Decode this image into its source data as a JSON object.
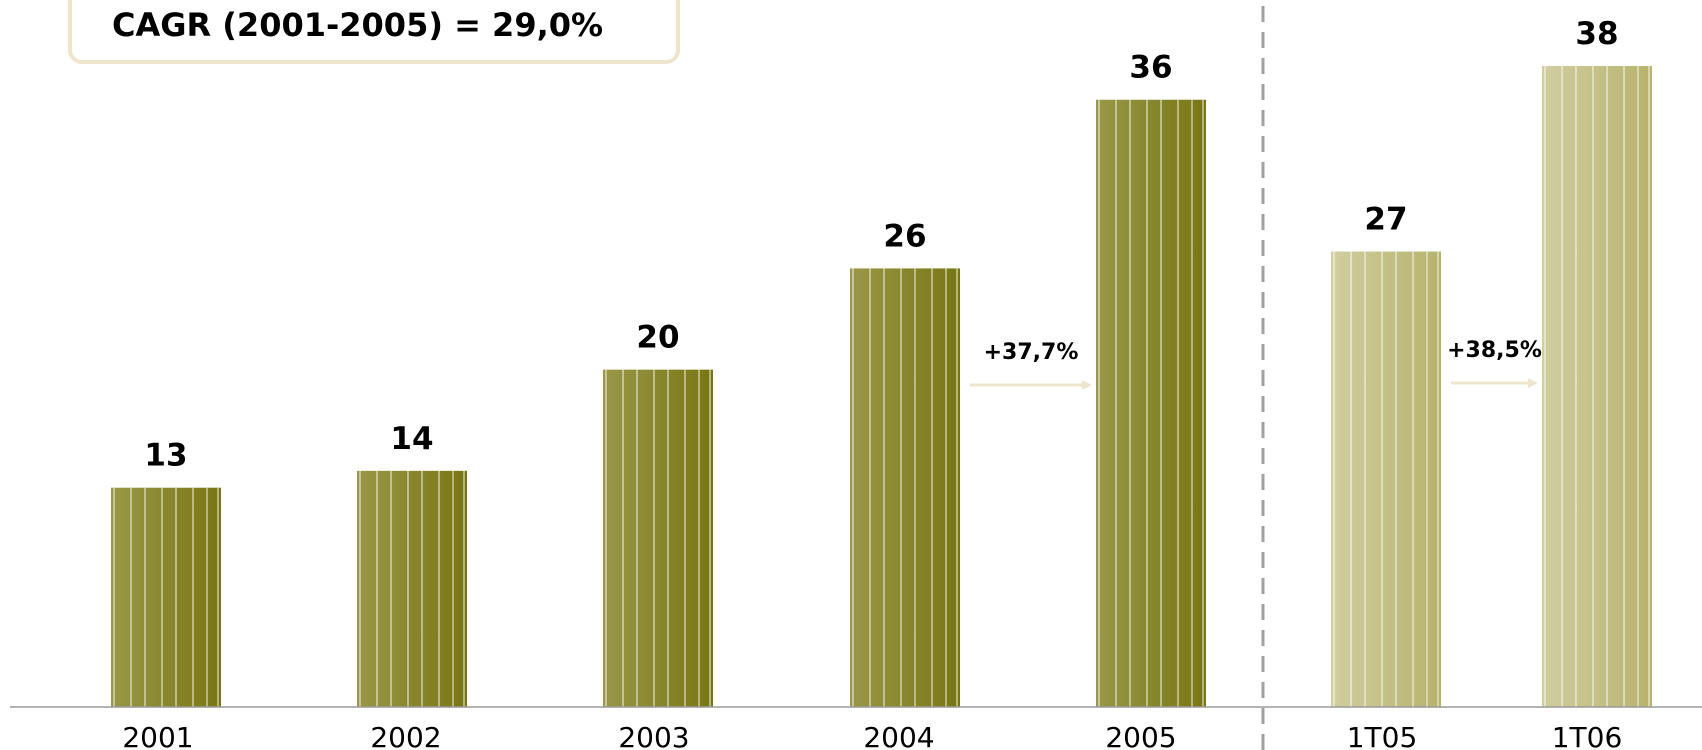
{
  "cagr_label": "CAGR (2001-2005) = 29,0%",
  "colors": {
    "annual_dark": "#787613",
    "annual_light": "#9a9848",
    "quarter_dark": "#b7b36c",
    "quarter_light": "#d1cea1",
    "arrow": "#efe4cc",
    "axis": "#9a9a9a",
    "divider": "#a0a0a0"
  },
  "chart_data": {
    "type": "bar",
    "title": "",
    "xlabel": "",
    "ylabel": "",
    "ylim": [
      0,
      38
    ],
    "categories": [
      "2001",
      "2002",
      "2003",
      "2004",
      "2005",
      "1T05",
      "1T06"
    ],
    "values": [
      13,
      14,
      20,
      26,
      36,
      27,
      38
    ],
    "value_labels": [
      "13",
      "14",
      "20",
      "26",
      "36",
      "27",
      "38"
    ],
    "groups": [
      "annual",
      "annual",
      "annual",
      "annual",
      "annual",
      "quarter",
      "quarter"
    ],
    "growth_annotations": [
      {
        "from": "2004",
        "to": "2005",
        "label": "+37,7%"
      },
      {
        "from": "1T05",
        "to": "1T06",
        "label": "+38,5%"
      }
    ],
    "divider_between": [
      "2005",
      "1T05"
    ],
    "grid": false,
    "legend": "none"
  }
}
